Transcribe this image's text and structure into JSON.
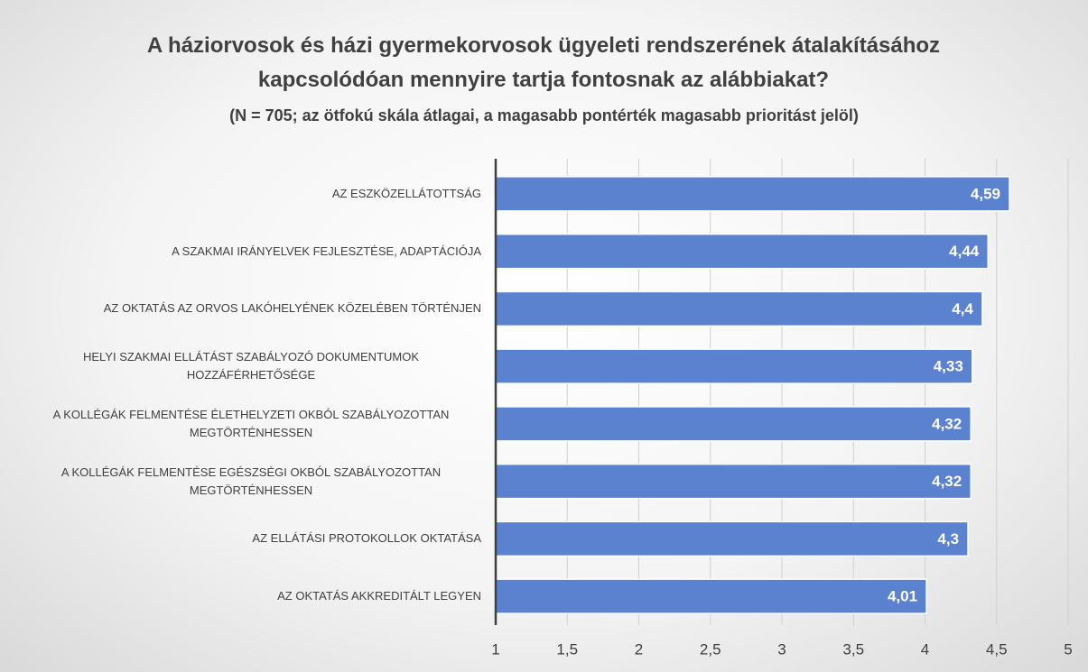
{
  "chart_data": {
    "type": "barh",
    "title": "A háziorvosok és házi gyermekorvosok ügyeleti rendszerének átalakításához kapcsolódóan mennyire tartja fontosnak az alábbiakat?",
    "subtitle": "(N = 705; az ötfokú skála átlagai, a magasabb pontérték magasabb prioritást jelöl)",
    "categories": [
      "AZ ESZKÖZELLÁTOTTSÁG",
      "A SZAKMAI IRÁNYELVEK FEJLESZTÉSE, ADAPTÁCIÓJA",
      "AZ OKTATÁS AZ ORVOS LAKÓHELYÉNEK KÖZELÉBEN TÖRTÉNJEN",
      "HELYI SZAKMAI ELLÁTÁST SZABÁLYOZÓ  DOKUMENTUMOK HOZZÁFÉRHETŐSÉGE",
      "A KOLLÉGÁK FELMENTÉSE ÉLETHELYZETI OKBÓL SZABÁLYOZOTTAN MEGTÖRTÉNHESSEN",
      "A KOLLÉGÁK FELMENTÉSE EGÉSZSÉGI OKBÓL SZABÁLYOZOTTAN MEGTÖRTÉNHESSEN",
      "AZ ELLÁTÁSI PROTOKOLLOK OKTATÁSA",
      "AZ OKTATÁS AKKREDITÁLT LEGYEN"
    ],
    "values": [
      4.59,
      4.44,
      4.4,
      4.33,
      4.32,
      4.32,
      4.3,
      4.01
    ],
    "value_labels": [
      "4,59",
      "4,44",
      "4,4",
      "4,33",
      "4,32",
      "4,32",
      "4,3",
      "4,01"
    ],
    "color": "#5b82cf",
    "xlim": [
      1,
      5
    ],
    "xticks": [
      1,
      {
        "value": 1.5,
        "label": "1,5"
      },
      2,
      {
        "value": 2.5,
        "label": "2,5"
      },
      3,
      {
        "value": 3.5,
        "label": "3,5"
      },
      4,
      {
        "value": 4.5,
        "label": "4,5"
      },
      5
    ],
    "grid": true
  }
}
